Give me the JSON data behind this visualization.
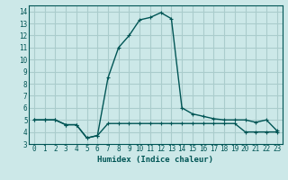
{
  "xlabel": "Humidex (Indice chaleur)",
  "background_color": "#cce8e8",
  "grid_color": "#aacccc",
  "line_color": "#005555",
  "xlim": [
    -0.5,
    23.5
  ],
  "ylim": [
    3,
    14.5
  ],
  "yticks": [
    3,
    4,
    5,
    6,
    7,
    8,
    9,
    10,
    11,
    12,
    13,
    14
  ],
  "xticks": [
    0,
    1,
    2,
    3,
    4,
    5,
    6,
    7,
    8,
    9,
    10,
    11,
    12,
    13,
    14,
    15,
    16,
    17,
    18,
    19,
    20,
    21,
    22,
    23
  ],
  "series1_x": [
    0,
    1,
    2,
    3,
    4,
    5,
    6,
    7,
    8,
    9,
    10,
    11,
    12,
    13,
    14,
    15,
    16,
    17,
    18,
    19,
    20,
    21,
    22,
    23
  ],
  "series1_y": [
    5.0,
    5.0,
    5.0,
    4.6,
    4.6,
    3.5,
    3.7,
    4.7,
    4.7,
    4.7,
    4.7,
    4.7,
    4.7,
    4.7,
    4.7,
    4.7,
    4.7,
    4.7,
    4.7,
    4.7,
    4.0,
    4.0,
    4.0,
    4.0
  ],
  "series2_x": [
    0,
    1,
    2,
    3,
    4,
    5,
    6,
    7,
    8,
    9,
    10,
    11,
    12,
    13,
    14,
    15,
    16,
    17,
    18,
    19,
    20,
    21,
    22,
    23
  ],
  "series2_y": [
    5.0,
    5.0,
    5.0,
    4.6,
    4.6,
    3.5,
    3.7,
    8.5,
    11.0,
    12.0,
    13.3,
    13.5,
    13.9,
    13.4,
    6.0,
    5.5,
    5.3,
    5.1,
    5.0,
    5.0,
    5.0,
    4.8,
    5.0,
    4.1
  ],
  "tick_fontsize": 5.5,
  "xlabel_fontsize": 6.5,
  "marker_size": 3.5
}
